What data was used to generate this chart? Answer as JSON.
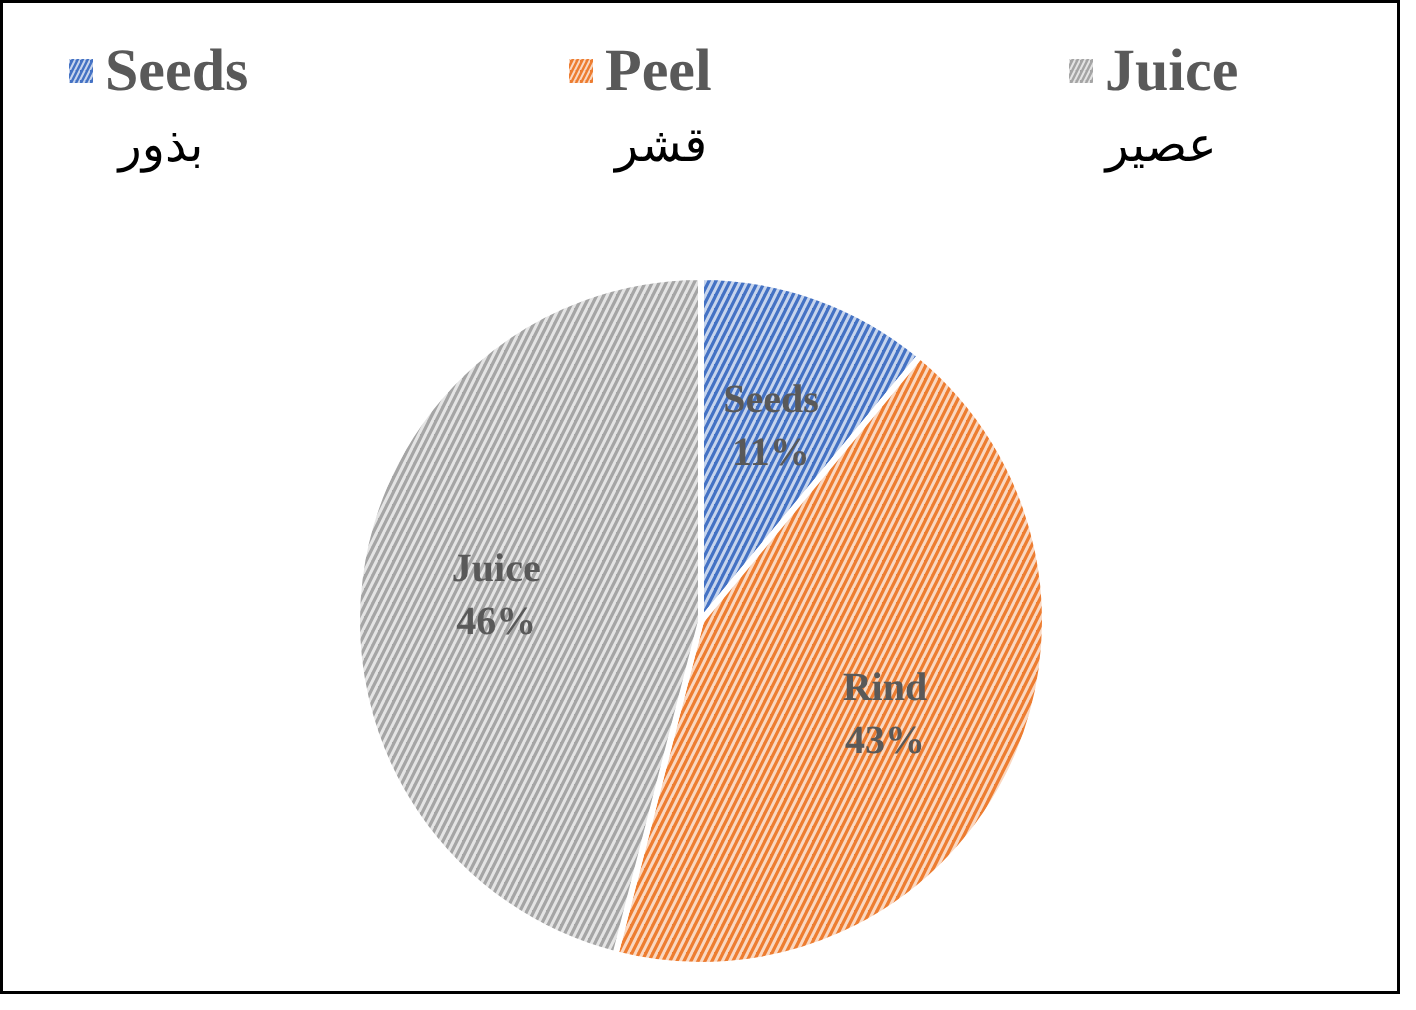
{
  "chart_data": {
    "type": "pie",
    "categories": [
      "Seeds",
      "Peel",
      "Juice"
    ],
    "values": [
      11,
      43,
      46
    ],
    "colors": [
      "#4472c4",
      "#ed7d31",
      "#a5a5a5"
    ],
    "value_labels": [
      "Seeds\n11%",
      "Rind\n43%",
      "Juice\n46%"
    ],
    "annotations": [
      "بذور",
      "قشر",
      "عصير"
    ],
    "legend": "top"
  }
}
